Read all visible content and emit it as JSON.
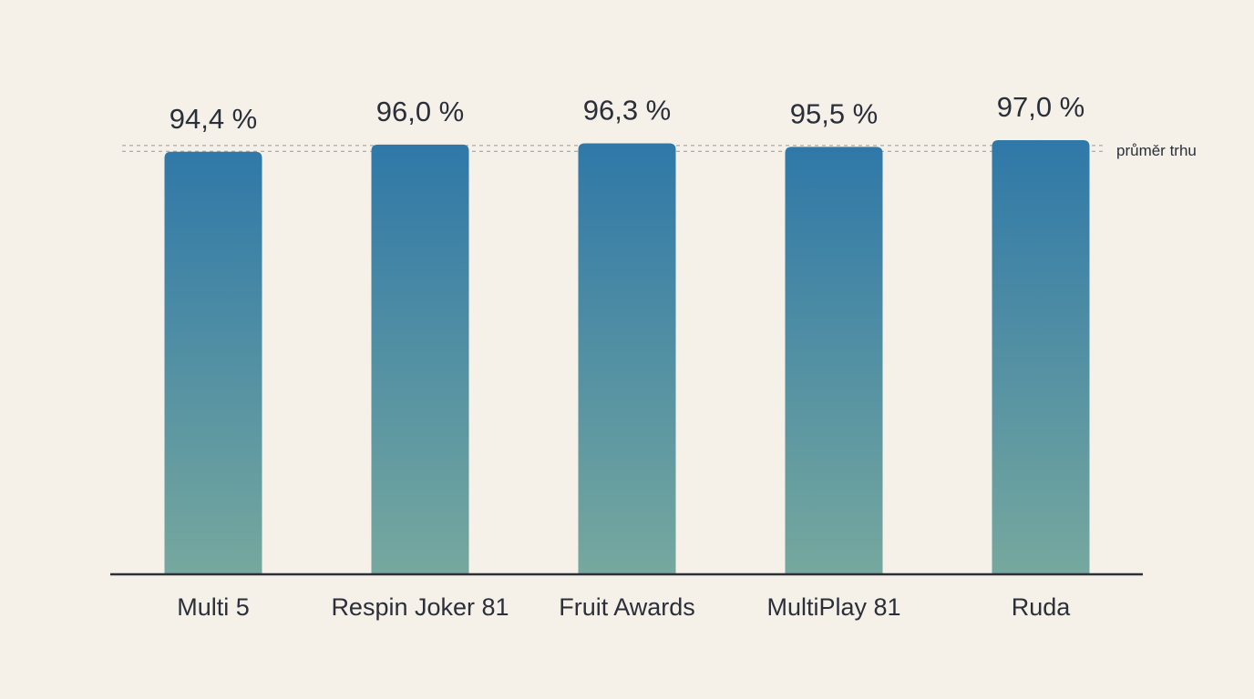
{
  "chart_data": {
    "type": "bar",
    "categories": [
      "Multi 5",
      "Respin Joker 81",
      "Fruit Awards",
      "MultiPlay 81",
      "Ruda"
    ],
    "values": [
      94.4,
      96.0,
      96.3,
      95.5,
      97.0
    ],
    "value_labels": [
      "94,4 %",
      "96,0 %",
      "96,3 %",
      "95,5 %",
      "97,0 %"
    ],
    "title": "",
    "xlabel": "",
    "ylabel": "",
    "ylim": [
      0,
      97.0
    ],
    "grid": false,
    "legend": "none",
    "reference_band": {
      "label": "průměr trhu",
      "range": [
        94.5,
        95.8
      ]
    },
    "colors": {
      "bar_top": "#2f78a8",
      "bar_bottom": "#76a89e",
      "axis": "#2b2f3a",
      "reference": "#9a9a96",
      "background": "#f5f1e8"
    }
  }
}
